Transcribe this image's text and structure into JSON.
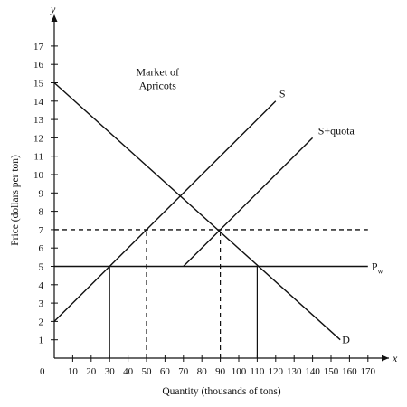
{
  "chart_data": {
    "type": "line",
    "title": "Market of Apricots",
    "title_lines": [
      "Market of",
      "Apricots"
    ],
    "xlabel": "Quantity (thousands of tons)",
    "ylabel": "Price (dollars per ton)",
    "x_axis_letter": "x",
    "y_axis_letter": "y",
    "origin_label": "0",
    "xlim": [
      0,
      175
    ],
    "ylim": [
      0,
      18
    ],
    "x_ticks": [
      10,
      20,
      30,
      40,
      50,
      60,
      70,
      80,
      90,
      100,
      110,
      120,
      130,
      140,
      150,
      160,
      170
    ],
    "y_ticks": [
      1,
      2,
      3,
      4,
      5,
      6,
      7,
      8,
      9,
      10,
      11,
      12,
      13,
      14,
      15,
      16,
      17
    ],
    "grid": false,
    "series": [
      {
        "name": "S",
        "style": "solid",
        "points": [
          [
            0,
            2
          ],
          [
            120,
            14
          ]
        ]
      },
      {
        "name": "S+quota",
        "style": "solid",
        "points": [
          [
            70,
            5
          ],
          [
            140,
            12
          ]
        ]
      },
      {
        "name": "D",
        "style": "solid",
        "points": [
          [
            0,
            15
          ],
          [
            155,
            1
          ]
        ]
      },
      {
        "name": "Pw",
        "style": "solid",
        "points": [
          [
            0,
            5
          ],
          [
            170,
            5
          ]
        ]
      },
      {
        "name": "",
        "style": "dashed",
        "points": [
          [
            0,
            7
          ],
          [
            170,
            7
          ]
        ]
      }
    ],
    "curve_labels": [
      {
        "series": "S",
        "text": "S",
        "x": 122,
        "y": 14.4
      },
      {
        "series": "S+quota",
        "text": "S+quota",
        "x": 143,
        "y": 12.4
      },
      {
        "series": "D",
        "text": "D",
        "x": 156,
        "y": 1.0
      },
      {
        "series": "Pw",
        "text": "P",
        "sub": "w",
        "x": 172,
        "y": 5.0
      }
    ],
    "vertical_guides": [
      {
        "x": 30,
        "y": 5,
        "style": "solid"
      },
      {
        "x": 50,
        "y": 7,
        "style": "dashed"
      },
      {
        "x": 90,
        "y": 7,
        "style": "dashed"
      },
      {
        "x": 110,
        "y": 5,
        "style": "solid"
      }
    ]
  }
}
